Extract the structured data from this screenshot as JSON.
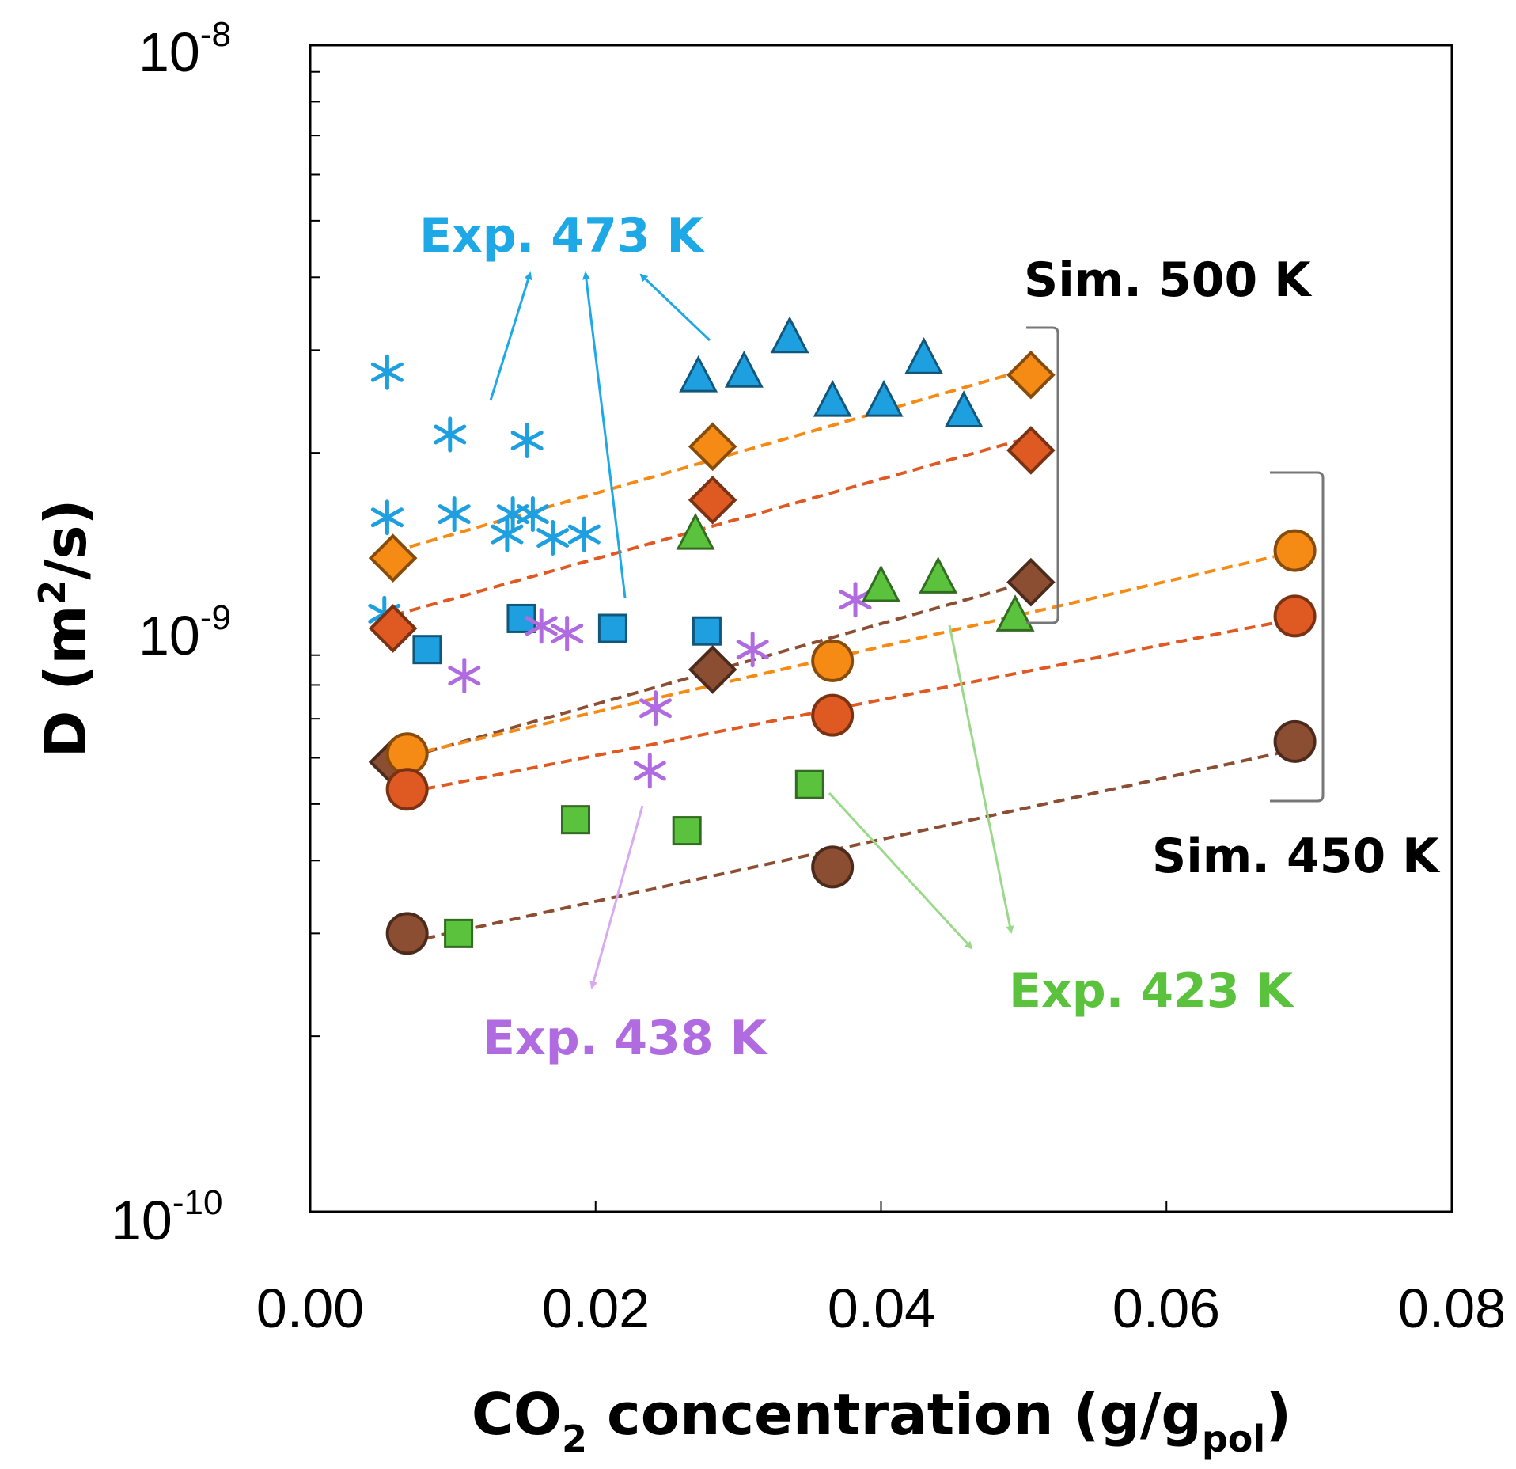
{
  "chart_data": {
    "type": "scatter",
    "xlabel": {
      "main": "CO",
      "sub": "2",
      "rest": " concentration (g/g",
      "sub2": "pol",
      "end": ")"
    },
    "ylabel": {
      "main": "D (m",
      "sup": "2",
      "end": "/s)"
    },
    "xlim": [
      0,
      0.08
    ],
    "ylim": [
      1e-10,
      1e-08
    ],
    "yscale": "log",
    "x_ticks": [
      "0.00",
      "0.02",
      "0.04",
      "0.06",
      "0.08"
    ],
    "y_ticks": [
      {
        "value": 1e-08,
        "base": "10",
        "exp": "-8"
      },
      {
        "value": 1e-09,
        "base": "10",
        "exp": "-9"
      },
      {
        "value": 1e-10,
        "base": "10",
        "exp": "-10"
      }
    ],
    "colors": {
      "exp473": "#1e9fe0",
      "exp423": "#5ac23c",
      "exp438": "#b06be0",
      "sim_orange": "#f58a14",
      "sim_red": "#de5a22",
      "sim_brown": "#8b4e33"
    },
    "series": [
      {
        "name": "Exp. 473 K (stars)",
        "marker": "star",
        "color": "#1e9fe0",
        "x": [
          0.0054,
          0.0054,
          0.0052,
          0.0098,
          0.0101,
          0.0138,
          0.0142,
          0.0152,
          0.0156,
          0.017,
          0.0192
        ],
        "y": [
          2.75e-09,
          1.55e-09,
          1.06e-09,
          2.15e-09,
          1.57e-09,
          1.45e-09,
          1.57e-09,
          2.1e-09,
          1.57e-09,
          1.43e-09,
          1.45e-09
        ]
      },
      {
        "name": "Exp. 473 K (squares)",
        "marker": "square",
        "color": "#1e9fe0",
        "x": [
          0.0082,
          0.0148,
          0.0212,
          0.0278
        ],
        "y": [
          9.2e-10,
          1.04e-09,
          1e-09,
          9.9e-10
        ]
      },
      {
        "name": "Exp. 473 K (triangles)",
        "marker": "triangle",
        "color": "#1e9fe0",
        "x": [
          0.0272,
          0.0304,
          0.0336,
          0.0366,
          0.0402,
          0.043,
          0.0458
        ],
        "y": [
          2.7e-09,
          2.75e-09,
          3.15e-09,
          2.45e-09,
          2.45e-09,
          2.9e-09,
          2.35e-09
        ]
      },
      {
        "name": "Exp. 438 K",
        "marker": "star",
        "color": "#b06be0",
        "x": [
          0.0108,
          0.0162,
          0.018,
          0.0242,
          0.0238,
          0.031,
          0.0382
        ],
        "y": [
          8.3e-10,
          1.01e-09,
          9.8e-10,
          7.3e-10,
          5.7e-10,
          9.2e-10,
          1.12e-09
        ]
      },
      {
        "name": "Exp. 423 K (squares)",
        "marker": "square",
        "color": "#5ac23c",
        "x": [
          0.0104,
          0.0186,
          0.0264,
          0.035
        ],
        "y": [
          3e-10,
          4.7e-10,
          4.5e-10,
          5.4e-10
        ]
      },
      {
        "name": "Exp. 423 K (triangles)",
        "marker": "triangle",
        "color": "#5ac23c",
        "x": [
          0.027,
          0.04,
          0.044,
          0.0494
        ],
        "y": [
          1.45e-09,
          1.18e-09,
          1.22e-09,
          1.05e-09
        ]
      },
      {
        "name": "Sim. 500 K orange",
        "marker": "diamond",
        "color": "#f58a14",
        "fit": true,
        "x": [
          0.0058,
          0.0282,
          0.0505
        ],
        "y": [
          1.32e-09,
          2.05e-09,
          2.72e-09
        ]
      },
      {
        "name": "Sim. 500 K red",
        "marker": "diamond",
        "color": "#de5a22",
        "fit": true,
        "x": [
          0.0058,
          0.0282,
          0.0505
        ],
        "y": [
          1e-09,
          1.66e-09,
          2.02e-09
        ]
      },
      {
        "name": "Sim. 500 K brown",
        "marker": "diamond",
        "color": "#8b4e33",
        "fit": true,
        "x": [
          0.0058,
          0.0282,
          0.0505
        ],
        "y": [
          5.9e-10,
          8.5e-10,
          1.2e-09
        ]
      },
      {
        "name": "Sim. 450 K orange",
        "marker": "circle",
        "color": "#f58a14",
        "fit": true,
        "x": [
          0.0068,
          0.0366,
          0.069
        ],
        "y": [
          6.1e-10,
          8.8e-10,
          1.36e-09
        ]
      },
      {
        "name": "Sim. 450 K red",
        "marker": "circle",
        "color": "#de5a22",
        "fit": true,
        "x": [
          0.0068,
          0.0366,
          0.069
        ],
        "y": [
          5.3e-10,
          7.1e-10,
          1.05e-09
        ]
      },
      {
        "name": "Sim. 450 K brown",
        "marker": "circle",
        "color": "#8b4e33",
        "fit": true,
        "x": [
          0.0068,
          0.0366,
          0.069
        ],
        "y": [
          3e-10,
          3.9e-10,
          6.4e-10
        ]
      }
    ],
    "annotations": [
      {
        "id": "exp473",
        "text": "Exp. 473 K",
        "color": "#1ea9e6"
      },
      {
        "id": "sim500",
        "text": "Sim. 500 K",
        "color": "#000000"
      },
      {
        "id": "sim450",
        "text": "Sim. 450 K",
        "color": "#000000"
      },
      {
        "id": "exp423",
        "text": "Exp. 423 K",
        "color": "#5ac23c"
      },
      {
        "id": "exp438",
        "text": "Exp. 438 K",
        "color": "#b06be0"
      }
    ]
  }
}
